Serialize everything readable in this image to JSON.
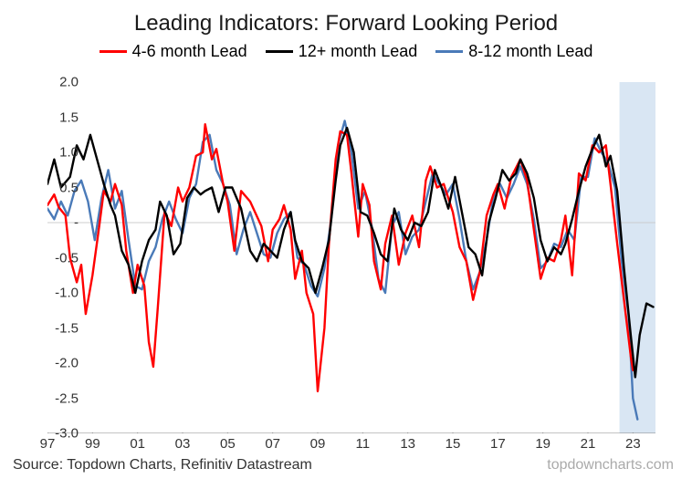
{
  "title": "Leading Indicators: Forward Looking Period",
  "legend": {
    "s1": "4-6 month Lead",
    "s2": "12+ month Lead",
    "s3": "8-12 month Lead"
  },
  "source": "Source: Topdown Charts, Refinitiv Datastream",
  "watermark": "topdowncharts.com",
  "chart": {
    "type": "line",
    "background_color": "#ffffff",
    "grid_color": "#d9d9d9",
    "zero_line_color": "#cccccc",
    "highlight_band_color": "#c5d9ed",
    "highlight_band_x": [
      2022.4,
      2024
    ],
    "ylim": [
      -3.0,
      2.0
    ],
    "ytick_step": 0.5,
    "yticks": [
      "2.0",
      "1.5",
      "1.0",
      "0.5",
      "-",
      "-0.5",
      "-1.0",
      "-1.5",
      "-2.0",
      "-2.5",
      "-3.0"
    ],
    "xlim": [
      1997,
      2024
    ],
    "xticks": [
      "97",
      "99",
      "01",
      "03",
      "05",
      "07",
      "09",
      "11",
      "13",
      "15",
      "17",
      "19",
      "21",
      "23"
    ],
    "xtick_vals": [
      1997,
      1999,
      2001,
      2003,
      2005,
      2007,
      2009,
      2011,
      2013,
      2015,
      2017,
      2019,
      2021,
      2023
    ],
    "line_width": 2.4,
    "colors": {
      "s1": "#ff0000",
      "s2": "#000000",
      "s3": "#4a7ab8"
    },
    "series": {
      "s1": [
        [
          1997.0,
          0.25
        ],
        [
          1997.3,
          0.4
        ],
        [
          1997.5,
          0.22
        ],
        [
          1997.8,
          0.1
        ],
        [
          1998.0,
          -0.5
        ],
        [
          1998.3,
          -0.85
        ],
        [
          1998.5,
          -0.6
        ],
        [
          1998.7,
          -1.3
        ],
        [
          1999.0,
          -0.75
        ],
        [
          1999.3,
          -0.05
        ],
        [
          1999.5,
          0.45
        ],
        [
          1999.8,
          0.3
        ],
        [
          2000.0,
          0.55
        ],
        [
          2000.3,
          0.25
        ],
        [
          2000.5,
          -0.4
        ],
        [
          2000.8,
          -1.0
        ],
        [
          2001.0,
          -0.6
        ],
        [
          2001.3,
          -0.9
        ],
        [
          2001.5,
          -1.7
        ],
        [
          2001.7,
          -2.05
        ],
        [
          2001.9,
          -1.2
        ],
        [
          2002.2,
          0.15
        ],
        [
          2002.5,
          -0.05
        ],
        [
          2002.8,
          0.5
        ],
        [
          2003.0,
          0.3
        ],
        [
          2003.3,
          0.5
        ],
        [
          2003.6,
          0.95
        ],
        [
          2003.9,
          1.0
        ],
        [
          2004.0,
          1.4
        ],
        [
          2004.3,
          0.9
        ],
        [
          2004.5,
          1.05
        ],
        [
          2004.8,
          0.55
        ],
        [
          2005.0,
          0.3
        ],
        [
          2005.3,
          -0.4
        ],
        [
          2005.6,
          0.45
        ],
        [
          2006.0,
          0.3
        ],
        [
          2006.5,
          -0.05
        ],
        [
          2006.8,
          -0.55
        ],
        [
          2007.0,
          -0.1
        ],
        [
          2007.3,
          0.05
        ],
        [
          2007.5,
          0.25
        ],
        [
          2007.8,
          -0.1
        ],
        [
          2008.0,
          -0.8
        ],
        [
          2008.3,
          -0.4
        ],
        [
          2008.5,
          -1.0
        ],
        [
          2008.8,
          -1.3
        ],
        [
          2009.0,
          -2.4
        ],
        [
          2009.3,
          -1.5
        ],
        [
          2009.5,
          -0.3
        ],
        [
          2009.8,
          0.9
        ],
        [
          2010.0,
          1.3
        ],
        [
          2010.3,
          1.25
        ],
        [
          2010.5,
          0.7
        ],
        [
          2010.8,
          -0.2
        ],
        [
          2011.0,
          0.55
        ],
        [
          2011.3,
          0.25
        ],
        [
          2011.5,
          -0.55
        ],
        [
          2011.8,
          -0.95
        ],
        [
          2012.0,
          -0.3
        ],
        [
          2012.3,
          0.1
        ],
        [
          2012.6,
          -0.6
        ],
        [
          2012.9,
          -0.15
        ],
        [
          2013.2,
          0.1
        ],
        [
          2013.5,
          -0.35
        ],
        [
          2013.8,
          0.6
        ],
        [
          2014.0,
          0.8
        ],
        [
          2014.3,
          0.5
        ],
        [
          2014.6,
          0.55
        ],
        [
          2015.0,
          0.15
        ],
        [
          2015.3,
          -0.35
        ],
        [
          2015.6,
          -0.55
        ],
        [
          2015.9,
          -1.1
        ],
        [
          2016.2,
          -0.7
        ],
        [
          2016.5,
          0.1
        ],
        [
          2016.8,
          0.4
        ],
        [
          2017.0,
          0.55
        ],
        [
          2017.3,
          0.2
        ],
        [
          2017.6,
          0.65
        ],
        [
          2018.0,
          0.9
        ],
        [
          2018.3,
          0.6
        ],
        [
          2018.6,
          -0.1
        ],
        [
          2018.9,
          -0.8
        ],
        [
          2019.2,
          -0.5
        ],
        [
          2019.5,
          -0.55
        ],
        [
          2019.8,
          -0.25
        ],
        [
          2020.0,
          0.1
        ],
        [
          2020.3,
          -0.75
        ],
        [
          2020.6,
          0.7
        ],
        [
          2020.9,
          0.6
        ],
        [
          2021.2,
          1.1
        ],
        [
          2021.5,
          1.0
        ],
        [
          2021.8,
          1.1
        ],
        [
          2022.0,
          0.55
        ],
        [
          2022.3,
          -0.3
        ],
        [
          2022.6,
          -1.1
        ],
        [
          2022.9,
          -1.9
        ],
        [
          2023.0,
          -2.1
        ]
      ],
      "s2": [
        [
          1997.0,
          0.55
        ],
        [
          1997.3,
          0.9
        ],
        [
          1997.6,
          0.5
        ],
        [
          1998.0,
          0.65
        ],
        [
          1998.3,
          1.1
        ],
        [
          1998.6,
          0.9
        ],
        [
          1998.9,
          1.25
        ],
        [
          1999.2,
          0.9
        ],
        [
          1999.5,
          0.55
        ],
        [
          1999.8,
          0.25
        ],
        [
          2000.0,
          0.1
        ],
        [
          2000.3,
          -0.4
        ],
        [
          2000.6,
          -0.6
        ],
        [
          2000.9,
          -1.0
        ],
        [
          2001.2,
          -0.55
        ],
        [
          2001.5,
          -0.25
        ],
        [
          2001.8,
          -0.1
        ],
        [
          2002.0,
          0.3
        ],
        [
          2002.3,
          0.1
        ],
        [
          2002.6,
          -0.45
        ],
        [
          2002.9,
          -0.3
        ],
        [
          2003.2,
          0.35
        ],
        [
          2003.5,
          0.5
        ],
        [
          2003.8,
          0.4
        ],
        [
          2004.0,
          0.45
        ],
        [
          2004.3,
          0.5
        ],
        [
          2004.6,
          0.15
        ],
        [
          2004.9,
          0.5
        ],
        [
          2005.2,
          0.5
        ],
        [
          2005.6,
          0.2
        ],
        [
          2006.0,
          -0.4
        ],
        [
          2006.3,
          -0.55
        ],
        [
          2006.6,
          -0.3
        ],
        [
          2006.9,
          -0.4
        ],
        [
          2007.2,
          -0.5
        ],
        [
          2007.5,
          -0.1
        ],
        [
          2007.8,
          0.15
        ],
        [
          2008.0,
          -0.25
        ],
        [
          2008.3,
          -0.55
        ],
        [
          2008.6,
          -0.65
        ],
        [
          2008.9,
          -1.0
        ],
        [
          2009.2,
          -0.65
        ],
        [
          2009.5,
          -0.25
        ],
        [
          2009.8,
          0.6
        ],
        [
          2010.0,
          1.1
        ],
        [
          2010.3,
          1.35
        ],
        [
          2010.6,
          1.0
        ],
        [
          2010.9,
          0.15
        ],
        [
          2011.2,
          0.1
        ],
        [
          2011.5,
          -0.15
        ],
        [
          2011.8,
          -0.45
        ],
        [
          2012.1,
          -0.55
        ],
        [
          2012.4,
          0.2
        ],
        [
          2012.7,
          -0.1
        ],
        [
          2013.0,
          -0.25
        ],
        [
          2013.3,
          0.0
        ],
        [
          2013.6,
          -0.05
        ],
        [
          2013.9,
          0.15
        ],
        [
          2014.2,
          0.75
        ],
        [
          2014.5,
          0.5
        ],
        [
          2014.8,
          0.2
        ],
        [
          2015.1,
          0.65
        ],
        [
          2015.4,
          0.15
        ],
        [
          2015.7,
          -0.35
        ],
        [
          2016.0,
          -0.45
        ],
        [
          2016.3,
          -0.75
        ],
        [
          2016.6,
          0.0
        ],
        [
          2016.9,
          0.35
        ],
        [
          2017.2,
          0.75
        ],
        [
          2017.5,
          0.6
        ],
        [
          2017.8,
          0.7
        ],
        [
          2018.0,
          0.9
        ],
        [
          2018.3,
          0.7
        ],
        [
          2018.6,
          0.35
        ],
        [
          2018.9,
          -0.25
        ],
        [
          2019.2,
          -0.55
        ],
        [
          2019.5,
          -0.35
        ],
        [
          2019.8,
          -0.45
        ],
        [
          2020.0,
          -0.3
        ],
        [
          2020.3,
          0.05
        ],
        [
          2020.6,
          0.45
        ],
        [
          2020.9,
          0.8
        ],
        [
          2021.2,
          1.05
        ],
        [
          2021.5,
          1.25
        ],
        [
          2021.8,
          0.8
        ],
        [
          2022.0,
          0.95
        ],
        [
          2022.3,
          0.45
        ],
        [
          2022.6,
          -0.65
        ],
        [
          2022.9,
          -1.6
        ],
        [
          2023.1,
          -2.2
        ],
        [
          2023.3,
          -1.6
        ],
        [
          2023.6,
          -1.15
        ],
        [
          2023.9,
          -1.2
        ]
      ],
      "s3": [
        [
          1997.0,
          0.2
        ],
        [
          1997.3,
          0.05
        ],
        [
          1997.6,
          0.3
        ],
        [
          1997.9,
          0.1
        ],
        [
          1998.2,
          0.45
        ],
        [
          1998.5,
          0.6
        ],
        [
          1998.8,
          0.3
        ],
        [
          1999.1,
          -0.25
        ],
        [
          1999.4,
          0.35
        ],
        [
          1999.7,
          0.75
        ],
        [
          2000.0,
          0.2
        ],
        [
          2000.3,
          0.45
        ],
        [
          2000.6,
          -0.25
        ],
        [
          2000.9,
          -0.9
        ],
        [
          2001.2,
          -0.95
        ],
        [
          2001.5,
          -0.55
        ],
        [
          2001.8,
          -0.35
        ],
        [
          2002.1,
          0.05
        ],
        [
          2002.4,
          0.3
        ],
        [
          2002.7,
          0.05
        ],
        [
          2003.0,
          -0.15
        ],
        [
          2003.3,
          0.35
        ],
        [
          2003.6,
          0.55
        ],
        [
          2003.9,
          1.15
        ],
        [
          2004.2,
          1.25
        ],
        [
          2004.5,
          0.75
        ],
        [
          2004.8,
          0.55
        ],
        [
          2005.1,
          0.25
        ],
        [
          2005.4,
          -0.45
        ],
        [
          2005.7,
          -0.1
        ],
        [
          2006.0,
          0.15
        ],
        [
          2006.3,
          -0.15
        ],
        [
          2006.6,
          -0.45
        ],
        [
          2006.9,
          -0.5
        ],
        [
          2007.2,
          -0.15
        ],
        [
          2007.5,
          0.05
        ],
        [
          2007.8,
          0.15
        ],
        [
          2008.1,
          -0.5
        ],
        [
          2008.4,
          -0.6
        ],
        [
          2008.7,
          -0.9
        ],
        [
          2009.0,
          -1.05
        ],
        [
          2009.3,
          -0.65
        ],
        [
          2009.6,
          0.05
        ],
        [
          2009.9,
          1.1
        ],
        [
          2010.2,
          1.45
        ],
        [
          2010.5,
          1.0
        ],
        [
          2010.8,
          0.2
        ],
        [
          2011.1,
          0.45
        ],
        [
          2011.4,
          -0.05
        ],
        [
          2011.7,
          -0.8
        ],
        [
          2012.0,
          -1.0
        ],
        [
          2012.3,
          -0.05
        ],
        [
          2012.6,
          0.15
        ],
        [
          2012.9,
          -0.45
        ],
        [
          2013.2,
          -0.2
        ],
        [
          2013.5,
          -0.1
        ],
        [
          2013.8,
          0.3
        ],
        [
          2014.1,
          0.7
        ],
        [
          2014.4,
          0.55
        ],
        [
          2014.7,
          0.4
        ],
        [
          2015.0,
          0.55
        ],
        [
          2015.3,
          0.05
        ],
        [
          2015.6,
          -0.55
        ],
        [
          2015.9,
          -0.95
        ],
        [
          2016.2,
          -0.7
        ],
        [
          2016.5,
          -0.25
        ],
        [
          2016.8,
          0.35
        ],
        [
          2017.1,
          0.55
        ],
        [
          2017.4,
          0.35
        ],
        [
          2017.7,
          0.55
        ],
        [
          2018.0,
          0.8
        ],
        [
          2018.3,
          0.55
        ],
        [
          2018.6,
          0.05
        ],
        [
          2018.9,
          -0.65
        ],
        [
          2019.2,
          -0.55
        ],
        [
          2019.5,
          -0.3
        ],
        [
          2019.8,
          -0.35
        ],
        [
          2020.1,
          -0.1
        ],
        [
          2020.4,
          -0.25
        ],
        [
          2020.7,
          0.65
        ],
        [
          2021.0,
          0.65
        ],
        [
          2021.3,
          1.2
        ],
        [
          2021.6,
          1.0
        ],
        [
          2021.9,
          0.85
        ],
        [
          2022.2,
          0.5
        ],
        [
          2022.5,
          -0.55
        ],
        [
          2022.8,
          -1.3
        ],
        [
          2023.0,
          -2.5
        ],
        [
          2023.2,
          -2.8
        ]
      ]
    }
  }
}
